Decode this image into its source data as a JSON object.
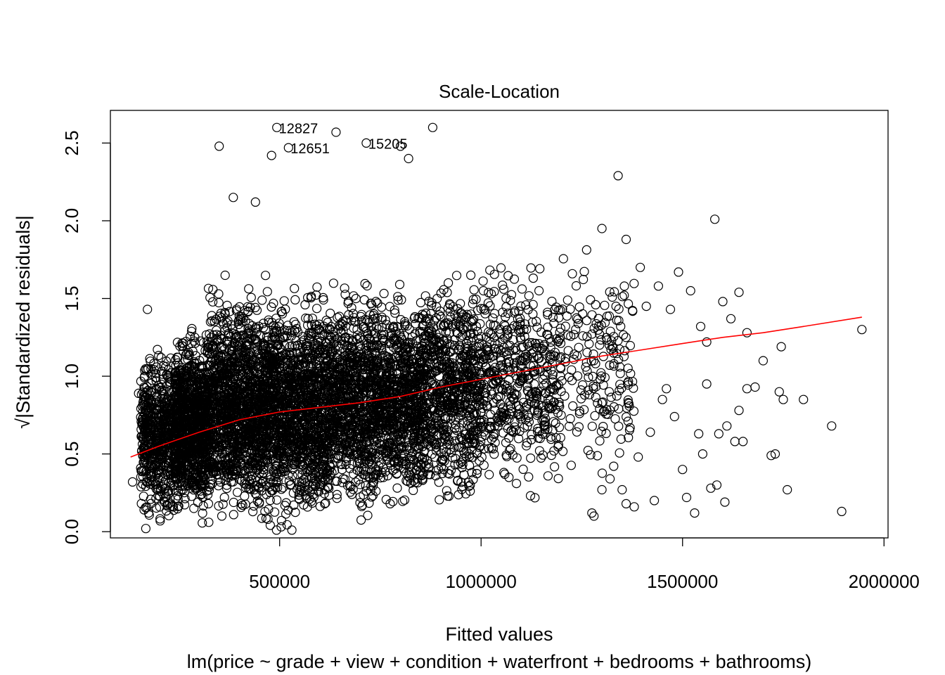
{
  "chart_data": {
    "type": "scatter",
    "title": "Scale-Location",
    "xlabel": "Fitted values",
    "ylabel": "√|Standardized residuals|",
    "subtitle": "lm(price ~ grade + view + condition + waterfront + bedrooms + bathrooms)",
    "xlim": [
      80000,
      2010000
    ],
    "ylim": [
      -0.04,
      2.71
    ],
    "x_ticks": [
      500000,
      1000000,
      1500000,
      2000000
    ],
    "x_tick_labels": [
      "500000",
      "1000000",
      "1500000",
      "2000000"
    ],
    "y_ticks": [
      0.0,
      0.5,
      1.0,
      1.5,
      2.0,
      2.5
    ],
    "y_tick_labels": [
      "0.0",
      "0.5",
      "1.0",
      "1.5",
      "2.0",
      "2.5"
    ],
    "grid": false,
    "colors": {
      "points": "#000000",
      "smooth": "#ff0000"
    },
    "labeled_points": [
      {
        "label": "12827",
        "x": 493000,
        "y": 2.6
      },
      {
        "label": "12651",
        "x": 522000,
        "y": 2.47
      },
      {
        "label": "15205",
        "x": 715000,
        "y": 2.5
      }
    ],
    "outliers": [
      [
        135000,
        0.32
      ],
      [
        150000,
        0.89
      ],
      [
        165000,
        1.0
      ],
      [
        172000,
        1.43
      ],
      [
        168000,
        0.02
      ],
      [
        175000,
        0.12
      ],
      [
        350000,
        2.48
      ],
      [
        385000,
        2.15
      ],
      [
        440000,
        2.12
      ],
      [
        480000,
        2.42
      ],
      [
        640000,
        2.57
      ],
      [
        800000,
        2.48
      ],
      [
        820000,
        2.4
      ],
      [
        880000,
        2.6
      ],
      [
        1340000,
        2.29
      ],
      [
        1300000,
        1.95
      ],
      [
        1360000,
        1.88
      ],
      [
        1395000,
        1.7
      ],
      [
        1410000,
        1.45
      ],
      [
        1440000,
        1.58
      ],
      [
        1470000,
        1.43
      ],
      [
        1490000,
        1.67
      ],
      [
        1520000,
        1.55
      ],
      [
        1545000,
        1.32
      ],
      [
        1560000,
        1.22
      ],
      [
        1580000,
        2.01
      ],
      [
        1600000,
        1.48
      ],
      [
        1620000,
        1.37
      ],
      [
        1640000,
        1.54
      ],
      [
        1660000,
        1.28
      ],
      [
        1680000,
        0.93
      ],
      [
        1700000,
        1.1
      ],
      [
        1720000,
        0.49
      ],
      [
        1730000,
        0.5
      ],
      [
        1740000,
        0.9
      ],
      [
        1745000,
        1.19
      ],
      [
        1750000,
        0.85
      ],
      [
        1760000,
        0.27
      ],
      [
        1800000,
        0.85
      ],
      [
        1870000,
        0.68
      ],
      [
        1895000,
        0.13
      ],
      [
        1945000,
        1.3
      ],
      [
        1450000,
        0.85
      ],
      [
        1480000,
        0.74
      ],
      [
        1500000,
        0.4
      ],
      [
        1510000,
        0.22
      ],
      [
        1530000,
        0.12
      ],
      [
        1550000,
        0.5
      ],
      [
        1570000,
        0.28
      ],
      [
        1590000,
        0.63
      ],
      [
        1610000,
        0.68
      ],
      [
        1630000,
        0.58
      ],
      [
        1640000,
        0.78
      ],
      [
        1660000,
        0.92
      ],
      [
        1430000,
        0.2
      ],
      [
        1390000,
        0.48
      ],
      [
        1380000,
        0.16
      ],
      [
        1420000,
        0.64
      ],
      [
        1460000,
        0.92
      ],
      [
        1540000,
        0.63
      ],
      [
        1560000,
        0.95
      ],
      [
        1585000,
        0.3
      ],
      [
        1605000,
        0.19
      ],
      [
        1650000,
        0.58
      ],
      [
        1275000,
        0.12
      ],
      [
        1280000,
        0.1
      ],
      [
        1300000,
        0.27
      ],
      [
        1320000,
        0.34
      ],
      [
        1350000,
        0.27
      ],
      [
        1360000,
        0.18
      ]
    ],
    "clusters": [
      {
        "n": 600,
        "x_min": 155000,
        "x_max": 245000,
        "y_center": 0.62,
        "y_spread": 0.4
      },
      {
        "n": 900,
        "x_min": 240000,
        "x_max": 320000,
        "y_center": 0.68,
        "y_spread": 0.45
      },
      {
        "n": 2600,
        "x_min": 320000,
        "x_max": 620000,
        "y_center": 0.8,
        "y_spread": 0.55
      },
      {
        "n": 1700,
        "x_min": 620000,
        "x_max": 860000,
        "y_center": 0.85,
        "y_spread": 0.52
      },
      {
        "n": 700,
        "x_min": 860000,
        "x_max": 1000000,
        "y_center": 0.92,
        "y_spread": 0.55
      },
      {
        "n": 500,
        "x_min": 1000000,
        "x_max": 1200000,
        "y_center": 1.0,
        "y_spread": 0.55
      },
      {
        "n": 180,
        "x_min": 1200000,
        "x_max": 1380000,
        "y_center": 1.05,
        "y_spread": 0.55
      }
    ],
    "smooth_line": {
      "x": [
        130000,
        200000,
        300000,
        400000,
        500000,
        600000,
        700000,
        800000,
        900000,
        1000000,
        1100000,
        1200000,
        1300000,
        1400000,
        1500000,
        1600000,
        1700000,
        1800000,
        1945000
      ],
      "y": [
        0.48,
        0.55,
        0.64,
        0.72,
        0.77,
        0.8,
        0.83,
        0.87,
        0.93,
        0.98,
        1.03,
        1.08,
        1.13,
        1.17,
        1.21,
        1.25,
        1.28,
        1.32,
        1.38
      ]
    }
  }
}
